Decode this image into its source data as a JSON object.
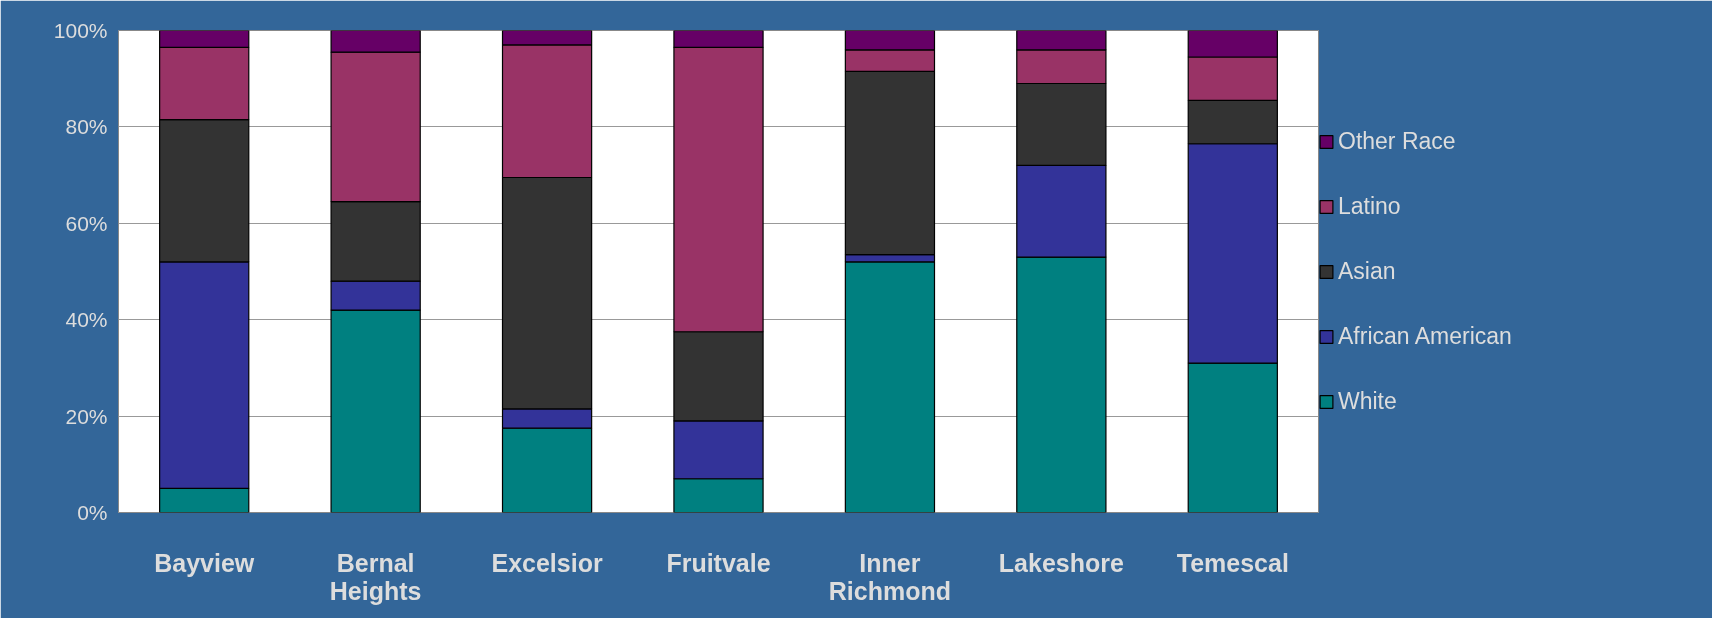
{
  "chart_data": {
    "type": "bar",
    "stacked": true,
    "categories": [
      "Bayview",
      "Bernal\nHeights",
      "Excelsior",
      "Fruitvale",
      "Inner\nRichmond",
      "Lakeshore",
      "Temescal"
    ],
    "series": [
      {
        "name": "White",
        "color": "#008080",
        "values": [
          5,
          42,
          17.5,
          7,
          52,
          53,
          31
        ]
      },
      {
        "name": "African American",
        "color": "#333399",
        "values": [
          47,
          6,
          4,
          12,
          1.5,
          19,
          45.5
        ]
      },
      {
        "name": "Asian",
        "color": "#333333",
        "values": [
          29.5,
          16.5,
          48,
          18.5,
          38,
          17,
          9
        ]
      },
      {
        "name": "Latino",
        "color": "#993366",
        "values": [
          15,
          31,
          27.5,
          59,
          4.5,
          7,
          9
        ]
      },
      {
        "name": "Other Race",
        "color": "#660066",
        "values": [
          3.5,
          4.5,
          3,
          3.5,
          4,
          4,
          5.5
        ]
      }
    ],
    "ylim": [
      0,
      100
    ],
    "yticks": [
      {
        "value": 0,
        "label": "0%"
      },
      {
        "value": 20,
        "label": "20%"
      },
      {
        "value": 40,
        "label": "40%"
      },
      {
        "value": 60,
        "label": "60%"
      },
      {
        "value": 80,
        "label": "80%"
      },
      {
        "value": 100,
        "label": "100%"
      }
    ],
    "grid": "y",
    "legend": "right"
  }
}
